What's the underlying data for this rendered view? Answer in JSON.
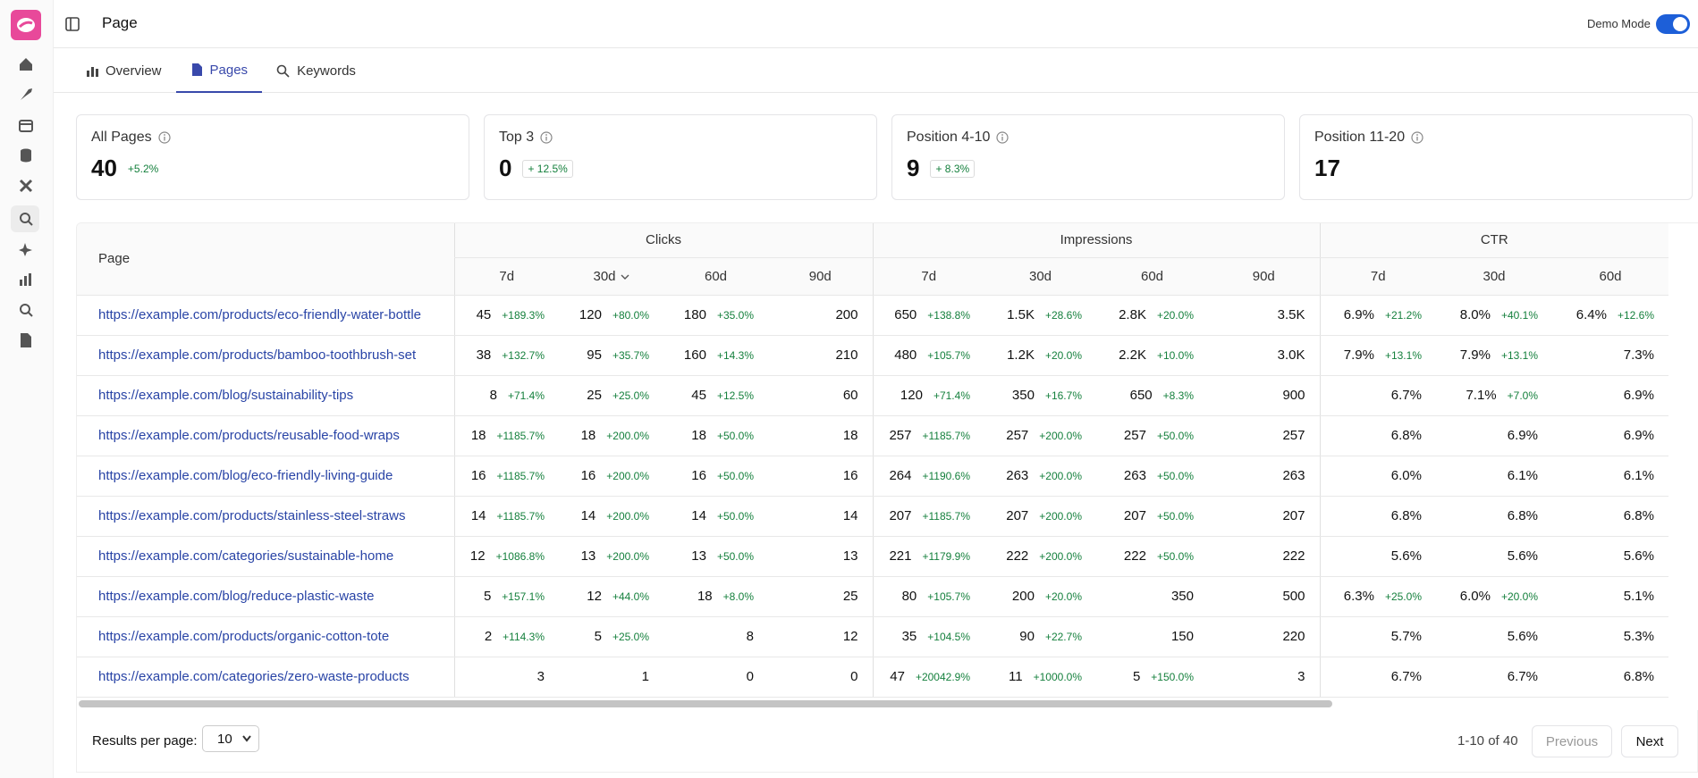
{
  "header": {
    "title": "Page",
    "demo_mode": "Demo Mode"
  },
  "tabs": [
    "Overview",
    "Pages",
    "Keywords"
  ],
  "cards": [
    {
      "label": "All Pages",
      "value": 40,
      "change": "+5.2%"
    },
    {
      "label": "Top 3",
      "value": 0,
      "change": "+ 12.5%"
    },
    {
      "label": "Position 4-10",
      "value": 9,
      "change": "+ 8.3%"
    },
    {
      "label": "Position 11-20",
      "value": 17
    }
  ],
  "table": {
    "page_header": "Page",
    "groups": [
      {
        "name": "Clicks",
        "periods": [
          "7d",
          "30d",
          "60d",
          "90d"
        ]
      },
      {
        "name": "Impressions",
        "periods": [
          "7d",
          "30d",
          "60d",
          "90d"
        ]
      },
      {
        "name": "CTR",
        "periods": [
          "7d",
          "30d",
          "60d"
        ]
      }
    ],
    "rows": [
      {
        "url": "https://example.com/products/eco-friendly-water-bottle",
        "cells": [
          [
            "45",
            "+189.3%"
          ],
          [
            "120",
            "+80.0%"
          ],
          [
            "180",
            "+35.0%"
          ],
          [
            "200"
          ],
          [
            "650",
            "+138.8%"
          ],
          [
            "1.5K",
            "+28.6%"
          ],
          [
            "2.8K",
            "+20.0%"
          ],
          [
            "3.5K"
          ],
          [
            "6.9%",
            "+21.2%"
          ],
          [
            "8.0%",
            "+40.1%"
          ],
          [
            "6.4%",
            "+12.6%"
          ]
        ]
      },
      {
        "url": "https://example.com/products/bamboo-toothbrush-set",
        "cells": [
          [
            "38",
            "+132.7%"
          ],
          [
            "95",
            "+35.7%"
          ],
          [
            "160",
            "+14.3%"
          ],
          [
            "210"
          ],
          [
            "480",
            "+105.7%"
          ],
          [
            "1.2K",
            "+20.0%"
          ],
          [
            "2.2K",
            "+10.0%"
          ],
          [
            "3.0K"
          ],
          [
            "7.9%",
            "+13.1%"
          ],
          [
            "7.9%",
            "+13.1%"
          ],
          [
            "7.3%"
          ]
        ]
      },
      {
        "url": "https://example.com/blog/sustainability-tips",
        "cells": [
          [
            "8",
            "+71.4%"
          ],
          [
            "25",
            "+25.0%"
          ],
          [
            "45",
            "+12.5%"
          ],
          [
            "60"
          ],
          [
            "120",
            "+71.4%"
          ],
          [
            "350",
            "+16.7%"
          ],
          [
            "650",
            "+8.3%"
          ],
          [
            "900"
          ],
          [
            "6.7%"
          ],
          [
            "7.1%",
            "+7.0%"
          ],
          [
            "6.9%"
          ]
        ]
      },
      {
        "url": "https://example.com/products/reusable-food-wraps",
        "cells": [
          [
            "18",
            "+1185.7%"
          ],
          [
            "18",
            "+200.0%"
          ],
          [
            "18",
            "+50.0%"
          ],
          [
            "18"
          ],
          [
            "257",
            "+1185.7%"
          ],
          [
            "257",
            "+200.0%"
          ],
          [
            "257",
            "+50.0%"
          ],
          [
            "257"
          ],
          [
            "6.8%"
          ],
          [
            "6.9%"
          ],
          [
            "6.9%"
          ]
        ]
      },
      {
        "url": "https://example.com/blog/eco-friendly-living-guide",
        "cells": [
          [
            "16",
            "+1185.7%"
          ],
          [
            "16",
            "+200.0%"
          ],
          [
            "16",
            "+50.0%"
          ],
          [
            "16"
          ],
          [
            "264",
            "+1190.6%"
          ],
          [
            "263",
            "+200.0%"
          ],
          [
            "263",
            "+50.0%"
          ],
          [
            "263"
          ],
          [
            "6.0%"
          ],
          [
            "6.1%"
          ],
          [
            "6.1%"
          ]
        ]
      },
      {
        "url": "https://example.com/products/stainless-steel-straws",
        "cells": [
          [
            "14",
            "+1185.7%"
          ],
          [
            "14",
            "+200.0%"
          ],
          [
            "14",
            "+50.0%"
          ],
          [
            "14"
          ],
          [
            "207",
            "+1185.7%"
          ],
          [
            "207",
            "+200.0%"
          ],
          [
            "207",
            "+50.0%"
          ],
          [
            "207"
          ],
          [
            "6.8%"
          ],
          [
            "6.8%"
          ],
          [
            "6.8%"
          ]
        ]
      },
      {
        "url": "https://example.com/categories/sustainable-home",
        "cells": [
          [
            "12",
            "+1086.8%"
          ],
          [
            "13",
            "+200.0%"
          ],
          [
            "13",
            "+50.0%"
          ],
          [
            "13"
          ],
          [
            "221",
            "+1179.9%"
          ],
          [
            "222",
            "+200.0%"
          ],
          [
            "222",
            "+50.0%"
          ],
          [
            "222"
          ],
          [
            "5.6%"
          ],
          [
            "5.6%"
          ],
          [
            "5.6%"
          ]
        ]
      },
      {
        "url": "https://example.com/blog/reduce-plastic-waste",
        "cells": [
          [
            "5",
            "+157.1%"
          ],
          [
            "12",
            "+44.0%"
          ],
          [
            "18",
            "+8.0%"
          ],
          [
            "25"
          ],
          [
            "80",
            "+105.7%"
          ],
          [
            "200",
            "+20.0%"
          ],
          [
            "350"
          ],
          [
            "500"
          ],
          [
            "6.3%",
            "+25.0%"
          ],
          [
            "6.0%",
            "+20.0%"
          ],
          [
            "5.1%"
          ]
        ]
      },
      {
        "url": "https://example.com/products/organic-cotton-tote",
        "cells": [
          [
            "2",
            "+114.3%"
          ],
          [
            "5",
            "+25.0%"
          ],
          [
            "8"
          ],
          [
            "12"
          ],
          [
            "35",
            "+104.5%"
          ],
          [
            "90",
            "+22.7%"
          ],
          [
            "150"
          ],
          [
            "220"
          ],
          [
            "5.7%"
          ],
          [
            "5.6%"
          ],
          [
            "5.3%"
          ]
        ]
      },
      {
        "url": "https://example.com/categories/zero-waste-products",
        "cells": [
          [
            "3"
          ],
          [
            "1"
          ],
          [
            "0"
          ],
          [
            "0"
          ],
          [
            "47",
            "+20042.9%"
          ],
          [
            "11",
            "+1000.0%"
          ],
          [
            "5",
            "+150.0%"
          ],
          [
            "3"
          ],
          [
            "6.7%"
          ],
          [
            "6.7%"
          ],
          [
            "6.8%"
          ]
        ]
      }
    ]
  },
  "footer": {
    "per_page_label": "Results per page:",
    "per_page": "10",
    "range": "1-10 of 40",
    "previous": "Previous",
    "next": "Next"
  }
}
